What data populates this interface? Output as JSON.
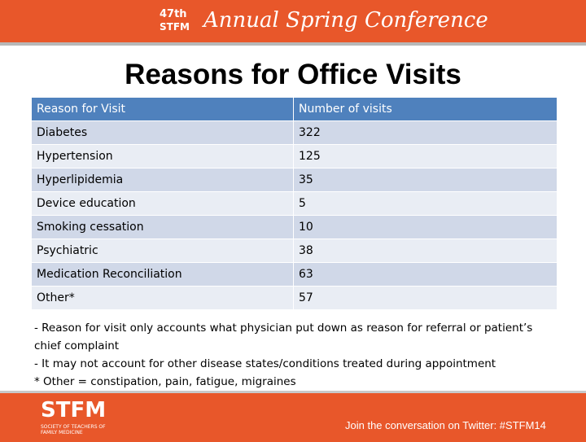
{
  "header": {
    "edition": "47th",
    "org": "STFM",
    "conference": "Annual Spring Conference"
  },
  "title": "Reasons for Office Visits",
  "table": {
    "columns": [
      "Reason for Visit",
      "Number of visits"
    ],
    "rows": [
      [
        "Diabetes",
        322
      ],
      [
        "Hypertension",
        125
      ],
      [
        "Hyperlipidemia",
        35
      ],
      [
        "Device education",
        5
      ],
      [
        "Smoking cessation",
        10
      ],
      [
        "Psychiatric",
        38
      ],
      [
        "Medication Reconciliation",
        63
      ],
      [
        "Other*",
        57
      ]
    ]
  },
  "notes": [
    "- Reason for visit only accounts what physician put down as reason for referral or patient’s chief complaint",
    "-   It may not account for other disease states/conditions treated during appointment",
    "* Other = constipation, pain, fatigue, migraines"
  ],
  "footer": {
    "logo": "STFM",
    "society": "SOCIETY OF TEACHERS OF FAMILY MEDICINE",
    "twitter": "Join the conversation on Twitter: #STFM14"
  }
}
